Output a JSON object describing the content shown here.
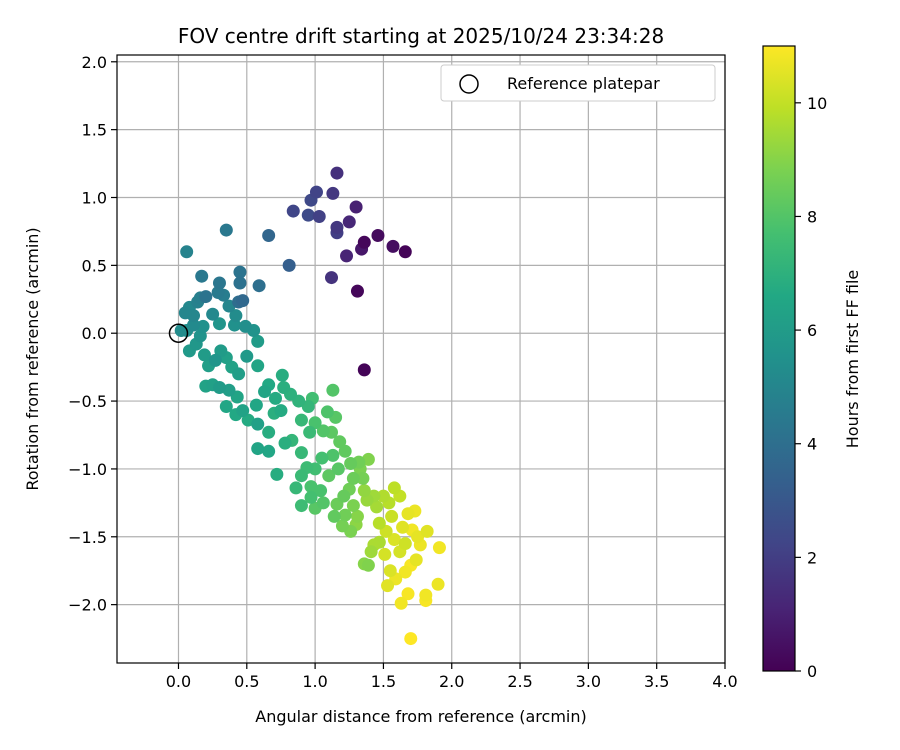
{
  "chart_data": {
    "type": "scatter",
    "title": "FOV centre drift starting at 2025/10/24 23:34:28",
    "xlabel": "Angular distance from reference (arcmin)",
    "ylabel": "Rotation from reference (arcmin)",
    "colorbar_label": "Hours from first FF file",
    "xlim": [
      -0.45,
      4.0
    ],
    "ylim": [
      -2.43,
      2.05
    ],
    "clim": [
      0,
      11
    ],
    "colormap": "viridis",
    "grid": true,
    "legend_position": "top-right",
    "x_ticks": [
      "0.0",
      "0.5",
      "1.0",
      "1.5",
      "2.0",
      "2.5",
      "3.0",
      "3.5",
      "4.0"
    ],
    "x_tick_values": [
      0,
      0.5,
      1,
      1.5,
      2,
      2.5,
      3,
      3.5,
      4
    ],
    "y_ticks": [
      "2.0",
      "1.5",
      "1.0",
      "0.5",
      "0.0",
      "−0.5",
      "−1.0",
      "−1.5",
      "−2.0"
    ],
    "y_tick_values": [
      2,
      1.5,
      1,
      0.5,
      0,
      -0.5,
      -1,
      -1.5,
      -2
    ],
    "colorbar_ticks": [
      "0",
      "2",
      "4",
      "6",
      "8",
      "10"
    ],
    "colorbar_tick_values": [
      0,
      2,
      4,
      6,
      8,
      10
    ],
    "reference": {
      "label": "Reference platepar",
      "x": 0.0,
      "y": 0.0
    },
    "points": [
      [
        1.66,
        0.6,
        0.1
      ],
      [
        1.36,
        0.67,
        0.2
      ],
      [
        1.46,
        0.72,
        0.3
      ],
      [
        1.57,
        0.64,
        0.4
      ],
      [
        1.31,
        0.31,
        0.2
      ],
      [
        1.36,
        -0.27,
        0.1
      ],
      [
        1.34,
        0.62,
        0.7
      ],
      [
        1.3,
        0.93,
        1.0
      ],
      [
        1.25,
        0.82,
        1.2
      ],
      [
        1.23,
        0.57,
        1.1
      ],
      [
        1.16,
        1.18,
        1.5
      ],
      [
        1.16,
        0.78,
        1.8
      ],
      [
        1.16,
        0.74,
        2.0
      ],
      [
        1.13,
        1.03,
        1.8
      ],
      [
        1.12,
        0.41,
        1.6
      ],
      [
        1.03,
        0.86,
        2.1
      ],
      [
        1.01,
        1.04,
        2.2
      ],
      [
        0.97,
        0.98,
        2.4
      ],
      [
        0.95,
        0.87,
        2.5
      ],
      [
        0.84,
        0.9,
        2.3
      ],
      [
        0.81,
        0.5,
        3.3
      ],
      [
        0.66,
        0.72,
        3.6
      ],
      [
        0.59,
        0.35,
        4.0
      ],
      [
        0.45,
        0.45,
        4.2
      ],
      [
        0.47,
        0.24,
        3.7
      ],
      [
        0.44,
        0.23,
        3.9
      ],
      [
        0.45,
        0.37,
        4.1
      ],
      [
        0.35,
        0.76,
        4.4
      ],
      [
        0.3,
        0.37,
        4.3
      ],
      [
        0.29,
        0.3,
        4.5
      ],
      [
        0.33,
        0.28,
        4.6
      ],
      [
        0.2,
        0.27,
        4.2
      ],
      [
        0.17,
        0.42,
        4.4
      ],
      [
        0.14,
        0.23,
        4.8
      ],
      [
        0.16,
        0.26,
        4.7
      ],
      [
        0.06,
        0.6,
        4.9
      ],
      [
        0.11,
        0.13,
        5.0
      ],
      [
        0.08,
        0.19,
        5.1
      ],
      [
        0.05,
        0.15,
        5.0
      ],
      [
        0.02,
        0.02,
        5.3
      ],
      [
        0.06,
        0.02,
        5.4
      ],
      [
        0.11,
        0.06,
        5.2
      ],
      [
        0.18,
        0.05,
        5.5
      ],
      [
        0.25,
        0.14,
        5.1
      ],
      [
        0.37,
        0.2,
        5.0
      ],
      [
        0.42,
        0.13,
        5.3
      ],
      [
        0.49,
        0.05,
        5.4
      ],
      [
        0.55,
        0.02,
        5.6
      ],
      [
        0.41,
        0.06,
        5.5
      ],
      [
        0.3,
        0.07,
        5.7
      ],
      [
        0.16,
        -0.02,
        5.6
      ],
      [
        0.13,
        -0.08,
        5.8
      ],
      [
        0.08,
        -0.13,
        5.9
      ],
      [
        0.19,
        -0.16,
        6.0
      ],
      [
        0.22,
        -0.24,
        6.1
      ],
      [
        0.27,
        -0.2,
        5.7
      ],
      [
        0.31,
        -0.13,
        6.0
      ],
      [
        0.35,
        -0.18,
        6.2
      ],
      [
        0.39,
        -0.25,
        6.3
      ],
      [
        0.44,
        -0.3,
        6.1
      ],
      [
        0.5,
        -0.17,
        5.9
      ],
      [
        0.58,
        -0.24,
        6.4
      ],
      [
        0.58,
        -0.06,
        6.0
      ],
      [
        0.25,
        -0.38,
        6.2
      ],
      [
        0.2,
        -0.39,
        6.3
      ],
      [
        0.3,
        -0.4,
        6.0
      ],
      [
        0.37,
        -0.42,
        6.1
      ],
      [
        0.43,
        -0.47,
        6.4
      ],
      [
        0.35,
        -0.54,
        6.5
      ],
      [
        0.42,
        -0.6,
        6.6
      ],
      [
        0.47,
        -0.57,
        6.3
      ],
      [
        0.51,
        -0.64,
        6.7
      ],
      [
        0.58,
        -0.67,
        6.2
      ],
      [
        0.66,
        -0.73,
        6.8
      ],
      [
        0.7,
        -0.59,
        6.9
      ],
      [
        0.63,
        -0.43,
        6.4
      ],
      [
        0.57,
        -0.53,
        6.5
      ],
      [
        0.66,
        -0.38,
        6.6
      ],
      [
        0.71,
        -0.48,
        6.7
      ],
      [
        0.76,
        -0.31,
        6.8
      ],
      [
        0.77,
        -0.4,
        6.9
      ],
      [
        0.82,
        -0.45,
        7.0
      ],
      [
        0.75,
        -0.57,
        6.7
      ],
      [
        0.88,
        -0.5,
        7.1
      ],
      [
        0.95,
        -0.54,
        7.2
      ],
      [
        0.9,
        -0.64,
        7.3
      ],
      [
        0.96,
        -0.73,
        7.4
      ],
      [
        0.58,
        -0.85,
        6.4
      ],
      [
        0.66,
        -0.87,
        6.5
      ],
      [
        0.72,
        -1.04,
        6.8
      ],
      [
        0.78,
        -0.81,
        6.9
      ],
      [
        0.83,
        -0.79,
        7.2
      ],
      [
        0.9,
        -0.88,
        7.3
      ],
      [
        0.98,
        -0.48,
        7.6
      ],
      [
        1.0,
        -0.66,
        7.8
      ],
      [
        1.09,
        -0.58,
        7.9
      ],
      [
        1.13,
        -0.42,
        8.0
      ],
      [
        1.15,
        -0.62,
        8.1
      ],
      [
        1.06,
        -0.72,
        8.0
      ],
      [
        1.12,
        -0.73,
        8.2
      ],
      [
        1.18,
        -0.8,
        8.3
      ],
      [
        1.13,
        -0.9,
        7.9
      ],
      [
        1.05,
        -0.92,
        7.7
      ],
      [
        1.0,
        -1.0,
        7.6
      ],
      [
        0.97,
        -1.13,
        7.8
      ],
      [
        0.94,
        -0.99,
        7.5
      ],
      [
        0.9,
        -1.05,
        7.4
      ],
      [
        0.86,
        -1.14,
        7.3
      ],
      [
        0.9,
        -1.27,
        7.5
      ],
      [
        0.97,
        -1.21,
        7.7
      ],
      [
        1.04,
        -1.16,
        7.8
      ],
      [
        1.06,
        -1.25,
        8.0
      ],
      [
        1.0,
        -1.29,
        8.1
      ],
      [
        1.1,
        -1.05,
        8.2
      ],
      [
        1.17,
        -1.0,
        8.1
      ],
      [
        1.22,
        -0.87,
        8.3
      ],
      [
        1.26,
        -0.96,
        8.4
      ],
      [
        1.32,
        -0.95,
        8.6
      ],
      [
        1.28,
        -1.07,
        8.5
      ],
      [
        1.33,
        -1.0,
        8.8
      ],
      [
        1.35,
        -1.07,
        8.7
      ],
      [
        1.39,
        -0.93,
        8.9
      ],
      [
        1.25,
        -1.15,
        8.6
      ],
      [
        1.21,
        -1.2,
        8.4
      ],
      [
        1.16,
        -1.26,
        8.5
      ],
      [
        1.14,
        -1.35,
        8.3
      ],
      [
        1.22,
        -1.34,
        8.6
      ],
      [
        1.28,
        -1.27,
        8.8
      ],
      [
        1.31,
        -1.35,
        9.0
      ],
      [
        1.2,
        -1.42,
        8.7
      ],
      [
        1.26,
        -1.46,
        8.8
      ],
      [
        1.3,
        -1.41,
        9.1
      ],
      [
        1.36,
        -1.16,
        9.2
      ],
      [
        1.38,
        -1.23,
        9.3
      ],
      [
        1.43,
        -1.2,
        9.4
      ],
      [
        1.45,
        -1.28,
        9.5
      ],
      [
        1.5,
        -1.2,
        9.7
      ],
      [
        1.54,
        -1.25,
        9.8
      ],
      [
        1.58,
        -1.14,
        9.9
      ],
      [
        1.62,
        -1.2,
        10.0
      ],
      [
        1.56,
        -1.35,
        10.1
      ],
      [
        1.52,
        -1.46,
        10.2
      ],
      [
        1.47,
        -1.54,
        9.6
      ],
      [
        1.41,
        -1.61,
        9.4
      ],
      [
        1.36,
        -1.7,
        9.0
      ],
      [
        1.39,
        -1.71,
        8.9
      ],
      [
        1.43,
        -1.56,
        9.6
      ],
      [
        1.51,
        -1.63,
        10.3
      ],
      [
        1.58,
        -1.52,
        10.4
      ],
      [
        1.64,
        -1.43,
        10.5
      ],
      [
        1.68,
        -1.33,
        10.6
      ],
      [
        1.73,
        -1.31,
        10.7
      ],
      [
        1.71,
        -1.45,
        10.8
      ],
      [
        1.75,
        -1.5,
        10.6
      ],
      [
        1.62,
        -1.61,
        10.3
      ],
      [
        1.55,
        -1.75,
        10.4
      ],
      [
        1.53,
        -1.86,
        10.5
      ],
      [
        1.59,
        -1.81,
        10.7
      ],
      [
        1.66,
        -1.76,
        10.8
      ],
      [
        1.7,
        -1.71,
        10.9
      ],
      [
        1.74,
        -1.67,
        10.6
      ],
      [
        1.77,
        -1.56,
        10.7
      ],
      [
        1.82,
        -1.46,
        10.5
      ],
      [
        1.91,
        -1.58,
        10.8
      ],
      [
        1.68,
        -1.92,
        10.9
      ],
      [
        1.63,
        -1.99,
        10.8
      ],
      [
        1.7,
        -2.25,
        11.0
      ],
      [
        1.81,
        -1.97,
        10.9
      ],
      [
        1.81,
        -1.93,
        10.8
      ],
      [
        1.9,
        -1.85,
        10.7
      ],
      [
        1.66,
        -1.55,
        10.2
      ],
      [
        1.47,
        -1.4,
        9.8
      ]
    ]
  }
}
